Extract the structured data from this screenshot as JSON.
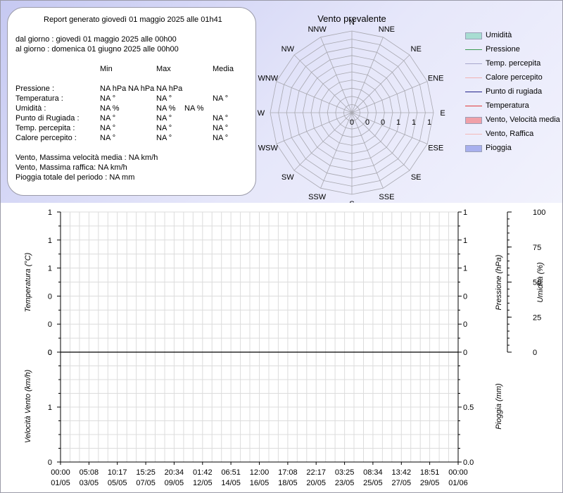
{
  "report": {
    "title": "Report generato giovedì 01 maggio 2025 alle 01h41",
    "from": "dal giorno : giovedì 01 maggio 2025 alle 00h00",
    "to": "al giorno : domenica 01 giugno 2025 alle 00h00",
    "col_min": "Min",
    "col_max": "Max",
    "col_avg": "Media",
    "rows": [
      {
        "label": "Pressione :",
        "min": "NA hPa",
        "max": "NA hPa",
        "avg": "NA hPa"
      },
      {
        "label": "Temperatura :",
        "min": "NA °",
        "max": "NA °",
        "avg": "NA °"
      },
      {
        "label": "Umidità :",
        "min": "NA %",
        "max": "NA %",
        "avg": "NA %"
      },
      {
        "label": "Punto di Rugiada :",
        "min": "NA °",
        "max": "NA °",
        "avg": "NA °"
      },
      {
        "label": "Temp. percepita :",
        "min": "NA °",
        "max": "NA °",
        "avg": "NA °"
      },
      {
        "label": "Calore percepito :",
        "min": "NA °",
        "max": "NA °",
        "avg": "NA °"
      }
    ],
    "wind_avg": "Vento, Massima velocità media : NA km/h",
    "wind_gust": "Vento, Massima raffica: NA km/h",
    "rain_total": "Pioggia totale del periodo : NA mm"
  },
  "legend": [
    {
      "label": "Umidità",
      "color": "#a8ddd2",
      "kind": "box"
    },
    {
      "label": "Pressione",
      "color": "#3a9a52",
      "kind": "line"
    },
    {
      "label": "Temp. percepita",
      "color": "#a8a8cc",
      "kind": "line"
    },
    {
      "label": "Calore percepito",
      "color": "#f2b2b2",
      "kind": "line"
    },
    {
      "label": "Punto di rugiada",
      "color": "#22228a",
      "kind": "line"
    },
    {
      "label": "Temperatura",
      "color": "#e03a3a",
      "kind": "line"
    },
    {
      "label": "Vento, Velocità media",
      "color": "#f0a0a8",
      "kind": "box"
    },
    {
      "label": "Vento, Raffica",
      "color": "#f3b8b8",
      "kind": "line"
    },
    {
      "label": "Pioggia",
      "color": "#a8b0ee",
      "kind": "box"
    }
  ],
  "chart_data": [
    {
      "type": "radar",
      "title": "Vento prevalente",
      "directions": [
        "N",
        "NNE",
        "NE",
        "ENE",
        "E",
        "ESE",
        "SE",
        "SSE",
        "S",
        "SSW",
        "SW",
        "WSW",
        "W",
        "WNW",
        "NW",
        "NNW"
      ],
      "ring_labels": [
        "0",
        "0",
        "0",
        "1",
        "1",
        "1"
      ],
      "values": []
    },
    {
      "type": "line",
      "x_labels": [
        [
          "00:00",
          "01/05"
        ],
        [
          "05:08",
          "03/05"
        ],
        [
          "10:17",
          "05/05"
        ],
        [
          "15:25",
          "07/05"
        ],
        [
          "20:34",
          "09/05"
        ],
        [
          "01:42",
          "12/05"
        ],
        [
          "06:51",
          "14/05"
        ],
        [
          "12:00",
          "16/05"
        ],
        [
          "17:08",
          "18/05"
        ],
        [
          "22:17",
          "20/05"
        ],
        [
          "03:25",
          "23/05"
        ],
        [
          "08:34",
          "25/05"
        ],
        [
          "13:42",
          "27/05"
        ],
        [
          "18:51",
          "29/05"
        ],
        [
          "00:00",
          "01/06"
        ]
      ],
      "left_ticks": [
        "1",
        "1",
        "1",
        "0",
        "0",
        "0"
      ],
      "right_ticks": [
        "1",
        "1",
        "1",
        "0",
        "0",
        "0"
      ],
      "humidity_ticks": [
        "100",
        "75",
        "50",
        "25",
        "0"
      ],
      "ylabel_left": "Temperatura (°C)",
      "ylabel_pressure": "Pressione (hPa)",
      "ylabel_humidity": "Umidità (%)",
      "series": []
    },
    {
      "type": "bar",
      "left_ticks": [
        "1",
        "0"
      ],
      "right_ticks": [
        "0.5",
        "0.0"
      ],
      "ylabel_left": "Velocità Vento (km/h)",
      "ylabel_right": "Pioggia (mm)",
      "series": []
    }
  ]
}
